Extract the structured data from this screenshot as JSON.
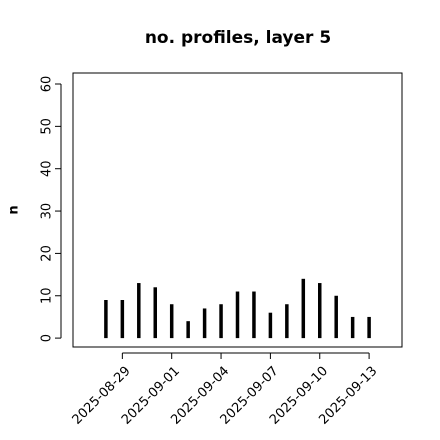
{
  "chart_data": {
    "type": "bar",
    "title": "no. profiles, layer 5",
    "y_label": "n",
    "x": [
      "2025-08-28",
      "2025-08-29",
      "2025-08-30",
      "2025-08-31",
      "2025-09-01",
      "2025-09-02",
      "2025-09-03",
      "2025-09-04",
      "2025-09-05",
      "2025-09-06",
      "2025-09-07",
      "2025-09-08",
      "2025-09-09",
      "2025-09-10",
      "2025-09-11",
      "2025-09-12",
      "2025-09-13"
    ],
    "values": [
      9,
      9,
      13,
      12,
      8,
      4,
      7,
      8,
      11,
      11,
      6,
      8,
      14,
      13,
      10,
      5,
      5
    ],
    "color": "#000000",
    "xlim": [
      "2025-08-26",
      "2025-09-15"
    ],
    "xticks": [
      "2025-08-29",
      "2025-09-01",
      "2025-09-04",
      "2025-09-07",
      "2025-09-10",
      "2025-09-13"
    ],
    "highlight_xtick": "2025-09-04",
    "highlight_color": "#228b22",
    "ylim": [
      -2.1,
      62.6
    ],
    "yticks": [
      0,
      10,
      20,
      30,
      40,
      50,
      60
    ],
    "grid": false
  }
}
